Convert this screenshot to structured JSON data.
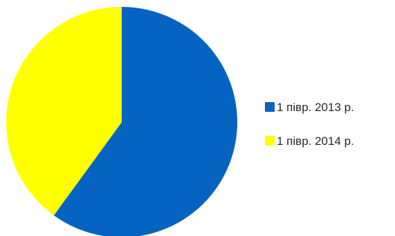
{
  "chart_data": {
    "type": "pie",
    "title": "",
    "slices": [
      {
        "label": "1 півр. 2013 р.",
        "value": 60,
        "color": "#0563C1"
      },
      {
        "label": "1 півр. 2014 р.",
        "value": 40,
        "color": "#FFFF00"
      }
    ],
    "start_angle_deg": 0,
    "direction": "clockwise",
    "legend": {
      "position": "right"
    }
  }
}
